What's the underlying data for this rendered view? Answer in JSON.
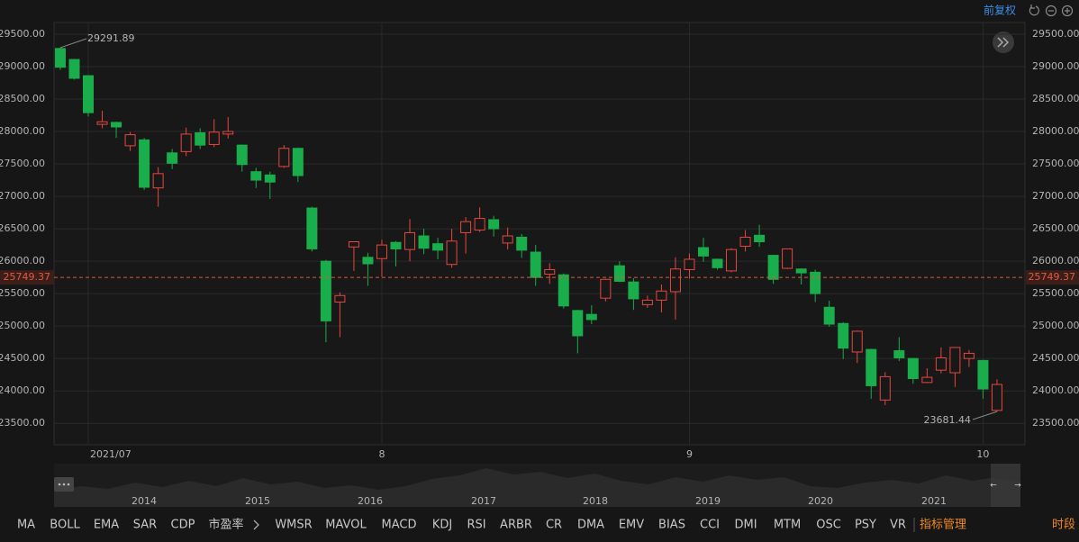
{
  "header": {
    "adjust": "前复权"
  },
  "chart_data": {
    "type": "candlestick",
    "categories": [
      null,
      null,
      "2021/07",
      null,
      null,
      null,
      null,
      null,
      null,
      null,
      null,
      null,
      null,
      null,
      null,
      null,
      null,
      null,
      null,
      null,
      null,
      null,
      null,
      "8",
      null,
      null,
      null,
      null,
      null,
      null,
      null,
      null,
      null,
      null,
      null,
      null,
      null,
      null,
      null,
      null,
      null,
      null,
      null,
      null,
      null,
      "9",
      null,
      null,
      null,
      null,
      null,
      null,
      null,
      null,
      null,
      null,
      null,
      null,
      null,
      null,
      null,
      null,
      null,
      null,
      null,
      null,
      "10",
      null
    ],
    "open": [
      29280,
      29110,
      28860,
      28110,
      28140,
      27780,
      27870,
      27130,
      27670,
      27690,
      27980,
      27800,
      27960,
      27790,
      27380,
      27330,
      27460,
      27740,
      26820,
      26000,
      25370,
      26220,
      26060,
      26040,
      26290,
      26180,
      26390,
      26270,
      25950,
      26440,
      26480,
      26640,
      26280,
      26370,
      26140,
      25800,
      25790,
      25240,
      25180,
      25430,
      25930,
      25680,
      25330,
      25400,
      25530,
      25870,
      26210,
      26030,
      25850,
      26230,
      26400,
      26090,
      25890,
      25880,
      25830,
      25290,
      25040,
      24600,
      24640,
      23860,
      24620,
      24500,
      24130,
      24320,
      24280,
      24500,
      24470,
      23700
    ],
    "high": [
      29291.89,
      29120,
      28870,
      28320,
      28150,
      27990,
      27900,
      27450,
      27730,
      28060,
      28050,
      28190,
      28220,
      27800,
      27440,
      27380,
      27790,
      27750,
      26840,
      26020,
      25520,
      26300,
      26130,
      26330,
      26310,
      26650,
      26500,
      26360,
      26500,
      26680,
      26830,
      26700,
      26520,
      26420,
      26250,
      25970,
      25810,
      25250,
      25320,
      25730,
      26000,
      25740,
      25470,
      25640,
      26060,
      26120,
      26360,
      26040,
      26200,
      26480,
      26560,
      26100,
      26190,
      25890,
      25870,
      25390,
      25060,
      24930,
      24650,
      24290,
      24830,
      24510,
      24350,
      24670,
      24670,
      24630,
      24480,
      24180
    ],
    "low": [
      28950,
      28800,
      28230,
      28050,
      27900,
      27700,
      27100,
      26840,
      27420,
      27620,
      27730,
      27760,
      27890,
      27380,
      27130,
      26960,
      27440,
      27220,
      26150,
      24750,
      24830,
      25850,
      25620,
      25760,
      25920,
      26000,
      26110,
      26030,
      25900,
      26120,
      26450,
      26380,
      26180,
      26050,
      25620,
      25650,
      25270,
      24580,
      25030,
      25380,
      25680,
      25250,
      25280,
      25210,
      25100,
      25730,
      25990,
      25870,
      25830,
      26150,
      26220,
      25650,
      25880,
      25640,
      25370,
      24990,
      24490,
      24430,
      23880,
      23780,
      24460,
      24110,
      24120,
      24270,
      24060,
      24370,
      23880,
      23681.44
    ],
    "close": [
      28990,
      28820,
      28290,
      28150,
      28070,
      27950,
      27140,
      27350,
      27510,
      27960,
      27790,
      27990,
      28000,
      27490,
      27250,
      27220,
      27740,
      27320,
      26190,
      25080,
      25470,
      26300,
      25960,
      26250,
      26190,
      26440,
      26200,
      26170,
      26310,
      26610,
      26660,
      26500,
      26390,
      26170,
      25750,
      25870,
      25310,
      24850,
      25100,
      25720,
      25690,
      25420,
      25400,
      25540,
      25880,
      26030,
      26080,
      25900,
      26180,
      26370,
      26300,
      25720,
      26190,
      25820,
      25500,
      25030,
      24660,
      24920,
      24080,
      24220,
      24510,
      24190,
      24210,
      24510,
      24670,
      24580,
      24030,
      24100
    ],
    "up_color": "#e8463e",
    "down_color": "#1aad4b",
    "last_price": 25749.37,
    "ylim": [
      23170,
      29680
    ],
    "yticks": [
      {
        "value": 23500,
        "label": "23500.00"
      },
      {
        "value": 24000,
        "label": "24000.00"
      },
      {
        "value": 24500,
        "label": "24500.00"
      },
      {
        "value": 25000,
        "label": "25000.00"
      },
      {
        "value": 25500,
        "label": "25500.00"
      },
      {
        "value": 26000,
        "label": "26000.00"
      },
      {
        "value": 26500,
        "label": "26500.00"
      },
      {
        "value": 27000,
        "label": "27000.00"
      },
      {
        "value": 27500,
        "label": "27500.00"
      },
      {
        "value": 28000,
        "label": "28000.00"
      },
      {
        "value": 28500,
        "label": "28500.00"
      },
      {
        "value": 29000,
        "label": "29000.00"
      },
      {
        "value": 29500,
        "label": "29500.00"
      }
    ],
    "grid": true
  },
  "navigator": {
    "years": [
      "2014",
      "2015",
      "2016",
      "2017",
      "2018",
      "2019",
      "2020",
      "2021"
    ]
  },
  "toolbar": {
    "indicators": [
      "MA",
      "BOLL",
      "EMA",
      "SAR",
      "CDP",
      "市盈率",
      "WMSR",
      "MAVOL",
      "MACD",
      "KDJ",
      "RSI",
      "ARBR",
      "CR",
      "DMA",
      "EMV",
      "BIAS",
      "CCI",
      "DMI",
      "MTM",
      "OSC",
      "PSY",
      "VR"
    ],
    "manage": "指标管理",
    "period": "时段"
  }
}
